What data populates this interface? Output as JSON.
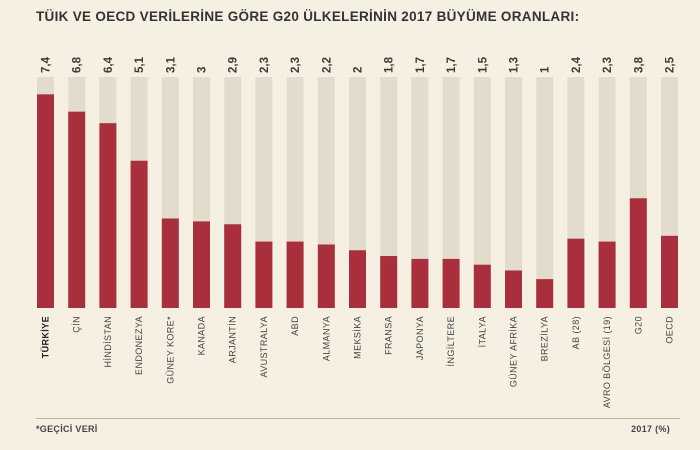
{
  "title": "TÜIK VE OECD VERİLERİNE GÖRE G20 ÜLKELERİNİN 2017 BÜYÜME ORANLARI:",
  "footnote": "*GEÇİCİ VERİ",
  "unit": "2017  (%)",
  "colors": {
    "bar": "#a82f3b",
    "track": "#e2dccd",
    "background": "#f5f0e1"
  },
  "chart_data": {
    "type": "bar",
    "title": "TÜIK VE OECD VERİLERİNE GÖRE G20 ÜLKELERİNİN 2017 BÜYÜME ORANLARI:",
    "categories": [
      "TÜRKİYE",
      "ÇİN",
      "HİNDİSTAN",
      "ENDONEZYA",
      "GÜNEY KORE*",
      "KANADA",
      "ARJANTİN",
      "AVUSTRALYA",
      "ABD",
      "ALMANYA",
      "MEKSİKA",
      "FRANSA",
      "JAPONYA",
      "İNGİLTERE",
      "İTALYA",
      "GÜNEY AFRİKA",
      "BREZİLYA",
      "AB (28)",
      "AVRO BÖLGESİ (19)",
      "G20",
      "OECD"
    ],
    "value_labels": [
      "7,4",
      "6,8",
      "6,4",
      "5,1",
      "3,1",
      "3",
      "2,9",
      "2,3",
      "2,3",
      "2,2",
      "2",
      "1,8",
      "1,7",
      "1,7",
      "1,5",
      "1,3",
      "1",
      "2,4",
      "2,3",
      "3,8",
      "2,5"
    ],
    "values": [
      7.4,
      6.8,
      6.4,
      5.1,
      3.1,
      3.0,
      2.9,
      2.3,
      2.3,
      2.2,
      2.0,
      1.8,
      1.7,
      1.7,
      1.5,
      1.3,
      1.0,
      2.4,
      2.3,
      3.8,
      2.5
    ],
    "ylim": [
      0,
      8
    ],
    "ylabel": "2017  (%)",
    "xlabel": "",
    "grid": false,
    "bold_category": "TÜRKİYE"
  }
}
